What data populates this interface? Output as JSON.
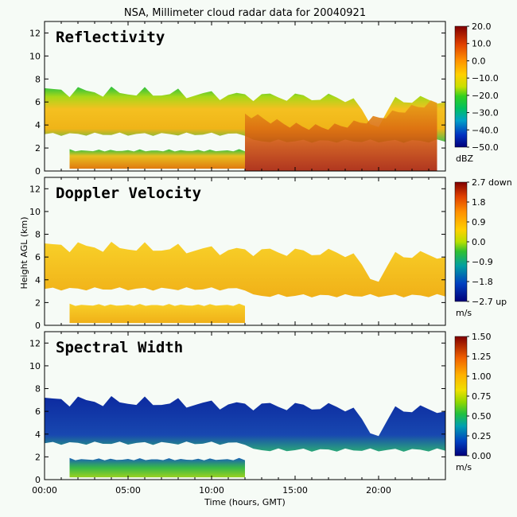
{
  "title": "NSA, Millimeter cloud radar data for 20040921",
  "xlabel": "Time (hours, GMT)",
  "ylabel": "Height AGL (km)",
  "x_ticks": [
    "00:00",
    "05:00",
    "10:00",
    "15:00",
    "20:00"
  ],
  "chart_data": [
    {
      "type": "heatmap",
      "panel_title": "Reflectivity",
      "x_range": [
        0,
        24
      ],
      "y_range": [
        0,
        13
      ],
      "y_ticks": [
        0,
        2,
        4,
        6,
        8,
        10,
        12
      ],
      "colorbar": {
        "ticks": [
          "20.0",
          "10.0",
          "0.0",
          "−10.0",
          "−20.0",
          "−30.0",
          "−40.0",
          "−50.0"
        ],
        "min": -50,
        "max": 20,
        "unit": "dBZ"
      },
      "features": [
        {
          "layer": "upper cloud",
          "base_km": 3.2,
          "top_km": 7.0,
          "time_h": [
            0,
            24
          ],
          "typical_value": -12
        },
        {
          "layer": "lower cloud",
          "base_km": 0.2,
          "top_km": 1.9,
          "time_h": [
            1.5,
            12
          ],
          "typical_value": -8
        },
        {
          "layer": "precipitation",
          "base_km": 0.0,
          "top_km": 5.0,
          "time_h": [
            12,
            23.5
          ],
          "typical_value": 0
        }
      ]
    },
    {
      "type": "heatmap",
      "panel_title": "Doppler Velocity",
      "x_range": [
        0,
        24
      ],
      "y_range": [
        0,
        13
      ],
      "y_ticks": [
        0,
        2,
        4,
        6,
        8,
        10,
        12
      ],
      "colorbar": {
        "ticks": [
          "2.7 down",
          "1.8",
          "0.9",
          "0.0",
          "−0.9",
          "−1.8",
          "−2.7 up"
        ],
        "min": -2.7,
        "max": 2.7,
        "unit": "m/s"
      },
      "features": [
        {
          "layer": "upper cloud",
          "base_km": 3.2,
          "top_km": 7.0,
          "time_h": [
            0,
            24
          ],
          "typical_value": 0.6
        },
        {
          "layer": "lower cloud",
          "base_km": 0.2,
          "top_km": 1.9,
          "time_h": [
            1.5,
            12
          ],
          "typical_value": 0.5
        }
      ]
    },
    {
      "type": "heatmap",
      "panel_title": "Spectral Width",
      "x_range": [
        0,
        24
      ],
      "y_range": [
        0,
        13
      ],
      "y_ticks": [
        0,
        2,
        4,
        6,
        8,
        10,
        12
      ],
      "colorbar": {
        "ticks": [
          "1.50",
          "1.25",
          "1.00",
          "0.75",
          "0.50",
          "0.25",
          "0.00"
        ],
        "min": 0,
        "max": 1.5,
        "unit": "m/s"
      },
      "features": [
        {
          "layer": "upper cloud",
          "base_km": 3.2,
          "top_km": 7.0,
          "time_h": [
            0,
            24
          ],
          "typical_value": 0.1
        },
        {
          "layer": "lower cloud",
          "base_km": 0.2,
          "top_km": 1.9,
          "time_h": [
            1.5,
            12
          ],
          "typical_value": 0.35
        }
      ]
    }
  ],
  "colors": {
    "background": "#f6fbf6",
    "frame": "#000000"
  }
}
